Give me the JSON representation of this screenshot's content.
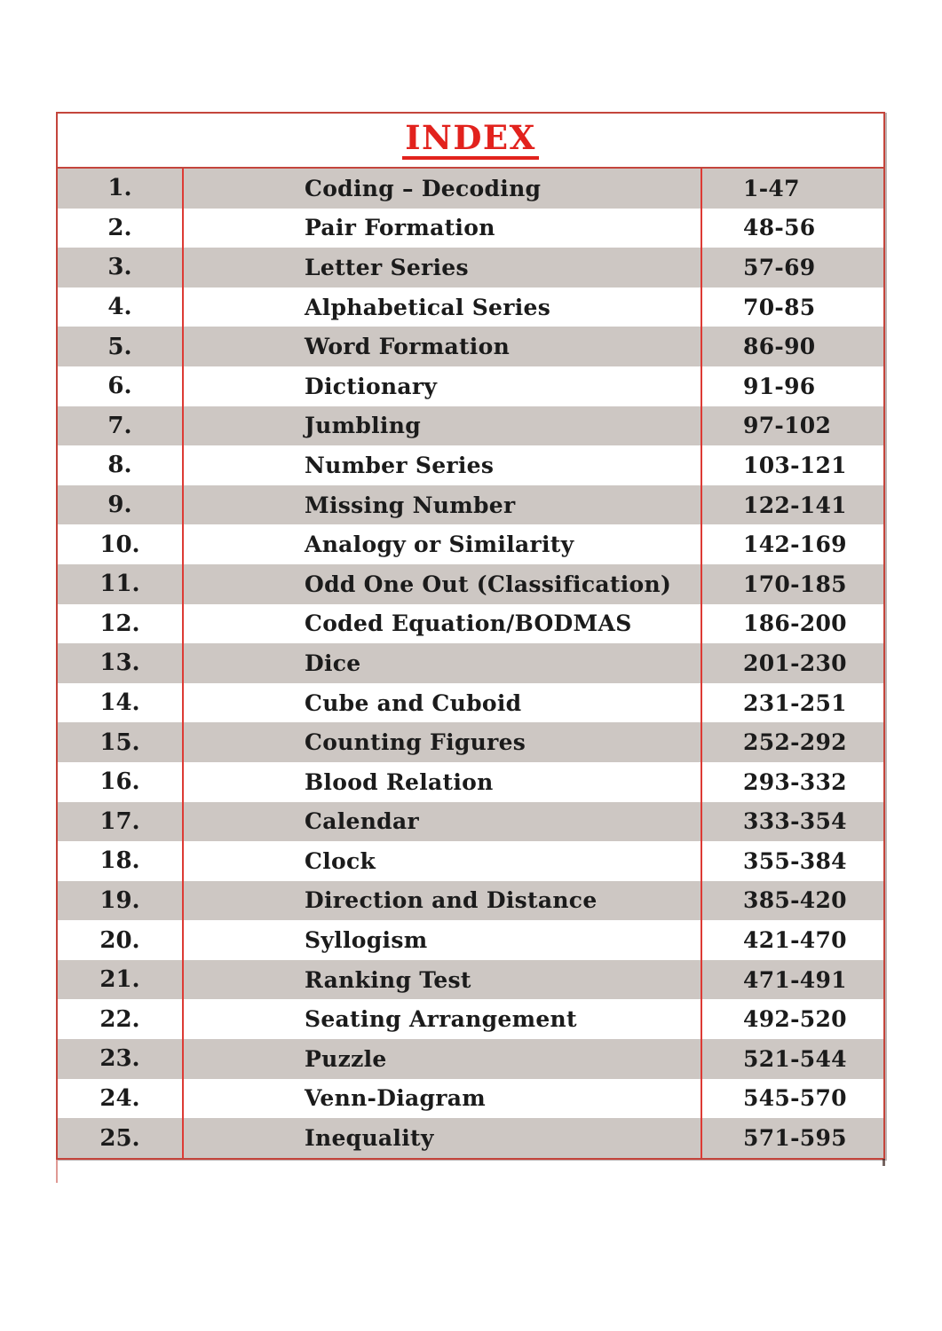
{
  "title": "INDEX",
  "colors": {
    "title_red": "#e2221d",
    "border_red": "#c4453c",
    "line_red": "#dd3b35",
    "stripe_gray": "#cdc7c3",
    "text": "#1b1b1b"
  },
  "index": {
    "columns": [
      "number",
      "chapter",
      "pages"
    ],
    "rows": [
      {
        "num": "1.",
        "chapter": "Coding – Decoding",
        "pages": "1-47"
      },
      {
        "num": "2.",
        "chapter": "Pair Formation",
        "pages": "48-56"
      },
      {
        "num": "3.",
        "chapter": "Letter Series",
        "pages": "57-69"
      },
      {
        "num": "4.",
        "chapter": "Alphabetical Series",
        "pages": "70-85"
      },
      {
        "num": "5.",
        "chapter": "Word Formation",
        "pages": "86-90"
      },
      {
        "num": "6.",
        "chapter": "Dictionary",
        "pages": "91-96"
      },
      {
        "num": "7.",
        "chapter": "Jumbling",
        "pages": "97-102"
      },
      {
        "num": "8.",
        "chapter": "Number Series",
        "pages": "103-121"
      },
      {
        "num": "9.",
        "chapter": "Missing Number",
        "pages": "122-141"
      },
      {
        "num": "10.",
        "chapter": "Analogy or Similarity",
        "pages": "142-169"
      },
      {
        "num": "11.",
        "chapter": "Odd One Out (Classification)",
        "pages": "170-185"
      },
      {
        "num": "12.",
        "chapter": "Coded Equation/BODMAS",
        "pages": "186-200"
      },
      {
        "num": "13.",
        "chapter": "Dice",
        "pages": "201-230"
      },
      {
        "num": "14.",
        "chapter": "Cube and Cuboid",
        "pages": "231-251"
      },
      {
        "num": "15.",
        "chapter": "Counting Figures",
        "pages": "252-292"
      },
      {
        "num": "16.",
        "chapter": "Blood Relation",
        "pages": "293-332"
      },
      {
        "num": "17.",
        "chapter": "Calendar",
        "pages": "333-354"
      },
      {
        "num": "18.",
        "chapter": "Clock",
        "pages": "355-384"
      },
      {
        "num": "19.",
        "chapter": "Direction and Distance",
        "pages": "385-420"
      },
      {
        "num": "20.",
        "chapter": "Syllogism",
        "pages": "421-470"
      },
      {
        "num": "21.",
        "chapter": "Ranking Test",
        "pages": "471-491"
      },
      {
        "num": "22.",
        "chapter": "Seating Arrangement",
        "pages": "492-520"
      },
      {
        "num": "23.",
        "chapter": "Puzzle",
        "pages": "521-544"
      },
      {
        "num": "24.",
        "chapter": "Venn-Diagram",
        "pages": "545-570"
      },
      {
        "num": "25.",
        "chapter": "Inequality",
        "pages": "571-595"
      }
    ]
  }
}
